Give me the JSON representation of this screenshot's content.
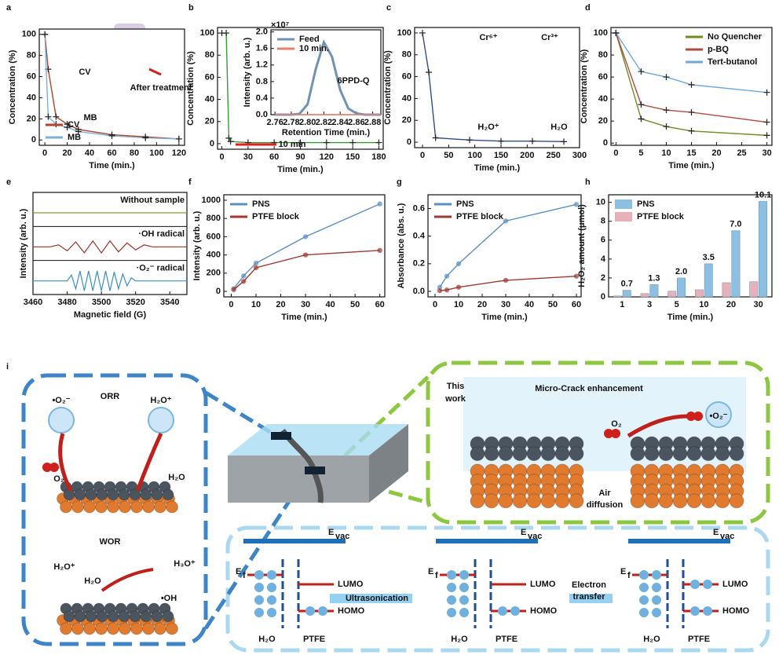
{
  "chart_data": [
    {
      "type": "line",
      "panel": "a",
      "xlabel": "Time (min.)",
      "ylabel": "Concentration (%)",
      "x": [
        0,
        3,
        10,
        20,
        30,
        60,
        90,
        120
      ],
      "xlim": [
        -5,
        125
      ],
      "xticks": [
        0,
        20,
        40,
        60,
        80,
        100,
        120
      ],
      "ylim": [
        -5,
        105
      ],
      "yticks": [
        0,
        20,
        40,
        60,
        80,
        100
      ],
      "legend": "lower left",
      "series": [
        {
          "name": "CV",
          "color": "#b0442c",
          "marker": "plus",
          "values": [
            100,
            67,
            22,
            15,
            10,
            5,
            3,
            1
          ]
        },
        {
          "name": "MB",
          "color": "#7fb1d8",
          "marker": "plus",
          "values": [
            100,
            22,
            15,
            12,
            8,
            4,
            2,
            1
          ]
        }
      ],
      "annotations": [
        "CV",
        "MB",
        "After treatment"
      ]
    },
    {
      "type": "line",
      "panel": "b",
      "xlabel": "Time (min.)",
      "ylabel": "Concentration (%)",
      "xlim": [
        -5,
        185
      ],
      "xticks": [
        0,
        30,
        60,
        90,
        120,
        150,
        180
      ],
      "ylim": [
        -5,
        105
      ],
      "yticks": [
        0,
        20,
        40,
        60,
        80,
        100
      ],
      "series": [
        {
          "color": "#3a9a3a",
          "marker": "plus",
          "x": [
            0,
            5,
            8,
            10,
            30,
            60,
            90,
            120,
            150,
            180
          ],
          "values": [
            100,
            100,
            5,
            2,
            1,
            1,
            1,
            1,
            1,
            1
          ]
        }
      ],
      "annotations": [
        "10 min"
      ]
    },
    {
      "type": "line",
      "inset": true,
      "xlabel": "Retention Time (min.)",
      "ylabel": "Intensity (arb. u.)",
      "y_scale_label": "×10⁷",
      "x": [
        2.76,
        2.77,
        2.78,
        2.79,
        2.8,
        2.81,
        2.82,
        2.83,
        2.84,
        2.85,
        2.86,
        2.87,
        2.88,
        2.89
      ],
      "xlim": [
        2.755,
        2.89
      ],
      "xticks": [
        2.76,
        2.78,
        {
          "value": 2.8,
          "label": "2.80"
        },
        2.82,
        2.84,
        2.86,
        2.88
      ],
      "ylim": [
        0,
        2.05
      ],
      "yticks": [
        {
          "value": 0,
          "label": "0.0"
        },
        0.4,
        0.8,
        1.2,
        1.6,
        {
          "value": 2,
          "label": "2.0"
        }
      ],
      "legend": "upper left",
      "series": [
        {
          "name": "Feed",
          "color": "#6f93b5",
          "values": [
            0,
            0,
            0,
            0.02,
            0.25,
            1.1,
            1.75,
            1.4,
            0.6,
            0.15,
            0.03,
            0,
            0,
            0
          ]
        },
        {
          "name": "10 min.",
          "color": "#e8806b",
          "values": [
            0,
            0,
            0,
            0,
            0,
            0,
            0,
            0,
            0,
            0,
            0,
            0,
            0,
            0
          ]
        }
      ],
      "annotations": [
        "6PPD-Q"
      ]
    },
    {
      "type": "line",
      "panel": "c",
      "xlabel": "Time (min.)",
      "ylabel": "Concentration (%)",
      "x": [
        0,
        12,
        25,
        90,
        150,
        210,
        270
      ],
      "xlim": [
        -15,
        300
      ],
      "xticks": [
        0,
        50,
        100,
        150,
        200,
        250,
        300
      ],
      "ylim": [
        -5,
        105
      ],
      "yticks": [
        0,
        20,
        40,
        60,
        80,
        100
      ],
      "series": [
        {
          "color": "#2f4f8f",
          "marker": "plus",
          "values": [
            100,
            64,
            4,
            2,
            1,
            1,
            0.5
          ]
        }
      ],
      "annotations": [
        "Cr⁶⁺",
        "Cr³⁺",
        "H₂O⁺",
        "H₂O"
      ]
    },
    {
      "type": "line",
      "panel": "d",
      "xlabel": "Time (min.)",
      "ylabel": "Concentration (%)",
      "x": [
        0,
        5,
        10,
        15,
        30
      ],
      "xlim": [
        -1,
        31
      ],
      "xticks": [
        0,
        5,
        10,
        15,
        20,
        25,
        30
      ],
      "ylim": [
        -2,
        105
      ],
      "yticks": [
        0,
        20,
        40,
        60,
        80,
        100
      ],
      "legend": "upper right",
      "series": [
        {
          "name": "No Quencher",
          "color": "#6b8e23",
          "marker": "plus",
          "values": [
            100,
            22,
            15,
            11,
            7
          ]
        },
        {
          "name": "p-BQ",
          "color": "#b04a44",
          "marker": "plus",
          "values": [
            100,
            35,
            30,
            28,
            19
          ]
        },
        {
          "name": "Tert-butanol",
          "color": "#6fa8dc",
          "marker": "plus",
          "values": [
            100,
            65,
            60,
            53,
            46
          ]
        }
      ]
    },
    {
      "type": "stacked-spectra",
      "panel": "e",
      "xlabel": "Magnetic field (G)",
      "ylabel": "Intensity (arb. u.)",
      "xlim": [
        3460,
        3550
      ],
      "xticks": [
        3460,
        3480,
        3500,
        3520,
        3540
      ],
      "ylim": [
        -1.2,
        1.2
      ],
      "series": [
        {
          "name": "Without sample",
          "color": "#8a9a3a",
          "x": [
            3460,
            3550
          ],
          "values": [
            0,
            0
          ]
        },
        {
          "name": "·OH radical",
          "color": "#a0302a",
          "x": [
            3460,
            3470,
            3475,
            3480,
            3485,
            3490,
            3495,
            3500,
            3505,
            3510,
            3515,
            3520,
            3525,
            3530,
            3550
          ],
          "values": [
            0,
            0,
            0.2,
            -0.4,
            0.5,
            -0.6,
            0.6,
            -0.6,
            0.6,
            -0.5,
            0.4,
            -0.3,
            0.2,
            0,
            0
          ]
        },
        {
          "name": "·O₂⁻ radical",
          "color": "#3a8fc0",
          "x": [
            3460,
            3480,
            3482.5,
            3485,
            3487.5,
            3490,
            3492.5,
            3495,
            3497.5,
            3500,
            3502.5,
            3505,
            3507.5,
            3510,
            3512.5,
            3515,
            3517.5,
            3520,
            3550
          ],
          "values": [
            0,
            0,
            0.6,
            -0.8,
            1,
            -1,
            1,
            -1,
            1,
            -1,
            1,
            -1,
            0.9,
            -0.8,
            0.7,
            -0.5,
            0.3,
            0,
            0
          ]
        }
      ]
    },
    {
      "type": "line",
      "panel": "f",
      "xlabel": "Time (min.)",
      "ylabel": "Intensity (arb. u.)",
      "x": [
        1,
        5,
        10,
        30,
        60
      ],
      "xlim": [
        -3,
        62
      ],
      "xticks": [
        0,
        10,
        20,
        30,
        40,
        50,
        60
      ],
      "ylim": [
        -60,
        1060
      ],
      "yticks": [
        0,
        200,
        400,
        600,
        800,
        1000
      ],
      "legend": "upper left",
      "series": [
        {
          "name": "PNS",
          "color": "#5b8fc0",
          "marker": "circle",
          "values": [
            30,
            170,
            310,
            600,
            960
          ]
        },
        {
          "name": "PTFE block",
          "color": "#9b3a30",
          "marker": "circle",
          "values": [
            20,
            110,
            260,
            400,
            450
          ]
        }
      ]
    },
    {
      "type": "line",
      "panel": "g",
      "xlabel": "Time (min.)",
      "ylabel": "Absorbance (abs. u.)",
      "x": [
        2,
        5,
        10,
        30,
        60
      ],
      "xlim": [
        -3,
        62
      ],
      "xticks": [
        0,
        10,
        20,
        30,
        40,
        50,
        60
      ],
      "ylim": [
        -0.04,
        0.7
      ],
      "yticks": [
        {
          "value": 0,
          "label": "0.0"
        },
        0.2,
        0.4,
        0.6
      ],
      "legend": "upper left",
      "series": [
        {
          "name": "PNS",
          "color": "#5b8fc0",
          "marker": "circle",
          "values": [
            0.03,
            0.11,
            0.2,
            0.51,
            0.63
          ]
        },
        {
          "name": "PTFE block",
          "color": "#9b3a30",
          "marker": "circle",
          "values": [
            0.005,
            0.01,
            0.03,
            0.08,
            0.11
          ]
        }
      ]
    },
    {
      "type": "bar",
      "panel": "h",
      "xlabel": "Time (min.)",
      "ylabel": "H₂O₂ amount (μmol)",
      "categories": [
        "1",
        "3",
        "5",
        "10",
        "20",
        "30"
      ],
      "ylim": [
        0,
        10.8
      ],
      "yticks": [
        0,
        2,
        4,
        6,
        8,
        10
      ],
      "legend": "upper left",
      "series": [
        {
          "name": "PNS",
          "color": "#8cbfe0",
          "values": [
            0.7,
            1.3,
            2.0,
            3.5,
            7.0,
            10.1
          ],
          "value_labels": [
            "0.7",
            "1.3",
            "2.0",
            "3.5",
            "7.0",
            "10.1"
          ]
        },
        {
          "name": "PTFE block",
          "color": "#e8b0b8",
          "values": [
            0.1,
            0.35,
            0.6,
            0.75,
            1.5,
            1.6
          ]
        }
      ]
    }
  ],
  "diagram": {
    "panel": "i",
    "labels": [
      "ORR",
      "•O₂⁻",
      "H₂O⁺",
      "O₂",
      "H₂O",
      "WOR",
      "H₂O⁺",
      "H₂O",
      "H₃O⁺",
      "•OH",
      "This",
      "work",
      "Micro-Crack enhancement",
      "O₂",
      "•O₂⁻",
      "Air",
      "diffusion",
      "Ultrasonication",
      "Electron",
      "transfer"
    ],
    "energy_diagrams": [
      {
        "evac": "E",
        "evac_sub": "vac",
        "ef": "E",
        "ef_sub": "f",
        "lumo": "LUMO",
        "homo": "HOMO",
        "left": "H₂O",
        "right": "PTFE"
      },
      {
        "evac": "E",
        "evac_sub": "vac",
        "ef": "E",
        "ef_sub": "f",
        "lumo": "LUMO",
        "homo": "HOMO",
        "left": "H₂O",
        "right": "PTFE"
      },
      {
        "evac": "E",
        "evac_sub": "vac",
        "ef": "E",
        "ef_sub": "f",
        "lumo": "LUMO",
        "homo": "HOMO",
        "left": "H₂O",
        "right": "PTFE"
      }
    ]
  }
}
